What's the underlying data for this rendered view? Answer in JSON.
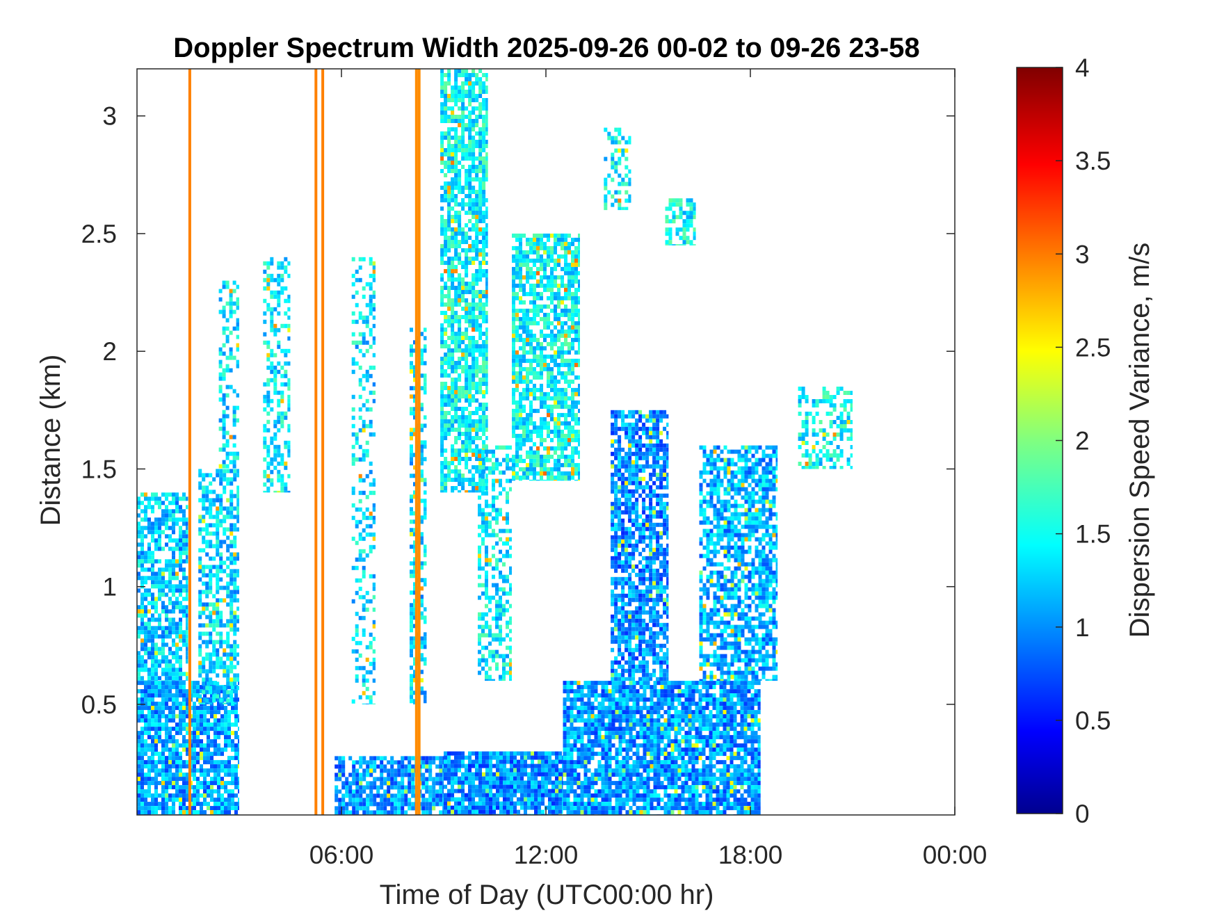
{
  "chart_data": {
    "type": "heatmap",
    "title": "Doppler Spectrum Width 2025-09-26 00-02 to 09-26 23-58",
    "xlabel": "Time of Day (UTC00:00 hr)",
    "ylabel": "Distance (km)",
    "colorbar_label": "Dispersion Speed Variance, m/s",
    "colormap": "jet",
    "xlim": [
      0,
      24
    ],
    "ylim": [
      0.03,
      3.2
    ],
    "clim": [
      0,
      4
    ],
    "x_ticks": [
      {
        "value": 6,
        "label": "06:00"
      },
      {
        "value": 12,
        "label": "12:00"
      },
      {
        "value": 18,
        "label": "18:00"
      },
      {
        "value": 24,
        "label": "00:00"
      }
    ],
    "y_ticks": [
      {
        "value": 0.5,
        "label": "0.5"
      },
      {
        "value": 1,
        "label": "1"
      },
      {
        "value": 1.5,
        "label": "1.5"
      },
      {
        "value": 2,
        "label": "2"
      },
      {
        "value": 2.5,
        "label": "2.5"
      },
      {
        "value": 3,
        "label": "3"
      }
    ],
    "colorbar_ticks": [
      {
        "value": 0,
        "label": "0"
      },
      {
        "value": 0.5,
        "label": "0.5"
      },
      {
        "value": 1,
        "label": "1"
      },
      {
        "value": 1.5,
        "label": "1.5"
      },
      {
        "value": 2,
        "label": "2"
      },
      {
        "value": 2.5,
        "label": "2.5"
      },
      {
        "value": 3,
        "label": "3"
      },
      {
        "value": 3.5,
        "label": "3.5"
      },
      {
        "value": 4,
        "label": "4"
      }
    ],
    "regions": [
      {
        "name": "surface-layer-0-3h",
        "x0": 0.0,
        "x1": 3.0,
        "y0": 0.03,
        "y1": 0.6,
        "value": 1.15,
        "density": 0.85
      },
      {
        "name": "low-layer-0-1.5h",
        "x0": 0.0,
        "x1": 1.5,
        "y0": 0.6,
        "y1": 1.4,
        "value": 1.3,
        "density": 0.7
      },
      {
        "name": "column-2-3h",
        "x0": 1.8,
        "x1": 3.0,
        "y0": 0.5,
        "y1": 1.5,
        "value": 1.35,
        "density": 0.6
      },
      {
        "name": "column-2.5-3h",
        "x0": 2.4,
        "x1": 3.0,
        "y0": 1.5,
        "y1": 2.3,
        "value": 1.4,
        "density": 0.35
      },
      {
        "name": "cloud-4-5h",
        "x0": 3.7,
        "x1": 4.5,
        "y0": 1.4,
        "y1": 2.4,
        "value": 1.45,
        "density": 0.4
      },
      {
        "name": "column-6-7h",
        "x0": 6.3,
        "x1": 7.0,
        "y0": 0.5,
        "y1": 2.4,
        "value": 1.4,
        "density": 0.35
      },
      {
        "name": "column-8h",
        "x0": 8.0,
        "x1": 8.5,
        "y0": 0.5,
        "y1": 2.1,
        "value": 1.35,
        "density": 0.5
      },
      {
        "name": "surface-layer-6-9h",
        "x0": 5.8,
        "x1": 9.0,
        "y0": 0.03,
        "y1": 0.28,
        "value": 1.1,
        "density": 0.8
      },
      {
        "name": "surface-layer-9-12h",
        "x0": 9.0,
        "x1": 12.5,
        "y0": 0.03,
        "y1": 0.3,
        "value": 1.05,
        "density": 0.9
      },
      {
        "name": "plume-9-10h",
        "x0": 8.9,
        "x1": 10.3,
        "y0": 1.4,
        "y1": 3.2,
        "value": 1.5,
        "density": 0.75
      },
      {
        "name": "plume-10-11h",
        "x0": 10.0,
        "x1": 11.0,
        "y0": 0.6,
        "y1": 1.6,
        "value": 1.45,
        "density": 0.45
      },
      {
        "name": "cloud-11-13h",
        "x0": 11.0,
        "x1": 13.0,
        "y0": 1.45,
        "y1": 2.5,
        "value": 1.5,
        "density": 0.75
      },
      {
        "name": "cloud-13.5-14.5h",
        "x0": 13.7,
        "x1": 14.5,
        "y0": 2.6,
        "y1": 2.95,
        "value": 1.5,
        "density": 0.45
      },
      {
        "name": "cloud-15.5-16.5h",
        "x0": 15.5,
        "x1": 16.4,
        "y0": 2.45,
        "y1": 2.65,
        "value": 1.5,
        "density": 0.55
      },
      {
        "name": "boundary-12-18h",
        "x0": 12.5,
        "x1": 18.3,
        "y0": 0.03,
        "y1": 0.6,
        "value": 1.1,
        "density": 0.85
      },
      {
        "name": "convection-14-15.5h",
        "x0": 13.9,
        "x1": 15.6,
        "y0": 0.6,
        "y1": 1.75,
        "value": 1.05,
        "density": 0.75
      },
      {
        "name": "convection-16.5-18.5h",
        "x0": 16.5,
        "x1": 18.8,
        "y0": 0.6,
        "y1": 1.6,
        "value": 1.2,
        "density": 0.7
      },
      {
        "name": "cloud-19.5-21h",
        "x0": 19.4,
        "x1": 21.0,
        "y0": 1.5,
        "y1": 1.85,
        "value": 1.5,
        "density": 0.4
      }
    ],
    "vertical_lines": [
      {
        "x": 1.55,
        "value": 3.0
      },
      {
        "x": 5.25,
        "value": 3.0
      },
      {
        "x": 5.45,
        "value": 3.0
      },
      {
        "x": 8.2,
        "value": 2.95
      },
      {
        "x": 8.28,
        "value": 2.95
      }
    ]
  }
}
